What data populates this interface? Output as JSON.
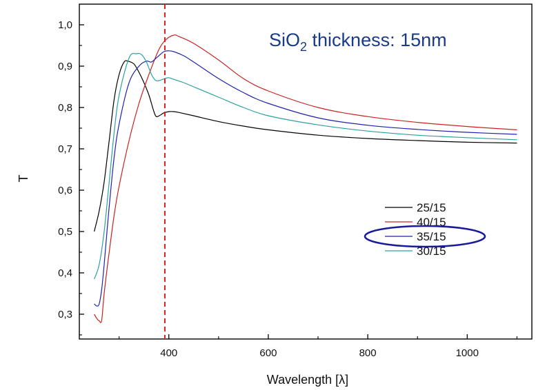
{
  "chart_data": {
    "type": "line",
    "title": "",
    "annotation": {
      "prefix": "SiO",
      "subscript": "2",
      "suffix": " thickness: 15nm",
      "color": "#1a3a8a"
    },
    "xlabel": "Wavelength [λ]",
    "ylabel": "T",
    "xlim": [
      220,
      1130
    ],
    "ylim": [
      0.24,
      1.05
    ],
    "xticks": [
      400,
      600,
      800,
      1000
    ],
    "xtick_labels": [
      "400",
      "600",
      "800",
      "1000"
    ],
    "yticks": [
      0.3,
      0.4,
      0.5,
      0.6,
      0.7,
      0.8,
      0.9,
      1.0
    ],
    "ytick_labels": [
      "0,3",
      "0,4",
      "0,5",
      "0,6",
      "0,7",
      "0,8",
      "0,9",
      "1,0"
    ],
    "grid": false,
    "legend_position": "lower-right",
    "reference_line": {
      "x": 392,
      "color": "#e02020",
      "style": "dashed"
    },
    "highlighted_series": "35/15",
    "highlight_color": "#1a1a9a",
    "series": [
      {
        "name": "25/15",
        "color": "#000000",
        "x": [
          250,
          260,
          270,
          280,
          290,
          300,
          310,
          318,
          330,
          340,
          350,
          360,
          370,
          375,
          382,
          390,
          400,
          410,
          420,
          450,
          500,
          550,
          600,
          700,
          800,
          900,
          1000,
          1100
        ],
        "y": [
          0.5,
          0.55,
          0.62,
          0.72,
          0.82,
          0.88,
          0.91,
          0.912,
          0.905,
          0.885,
          0.86,
          0.83,
          0.79,
          0.778,
          0.781,
          0.787,
          0.79,
          0.79,
          0.788,
          0.78,
          0.766,
          0.755,
          0.746,
          0.733,
          0.725,
          0.72,
          0.716,
          0.714
        ]
      },
      {
        "name": "40/15",
        "color": "#cc2020",
        "x": [
          250,
          255,
          260,
          265,
          270,
          280,
          290,
          300,
          320,
          340,
          360,
          380,
          395,
          410,
          420,
          450,
          500,
          550,
          600,
          700,
          800,
          900,
          1000,
          1100
        ],
        "y": [
          0.3,
          0.29,
          0.284,
          0.285,
          0.35,
          0.45,
          0.54,
          0.61,
          0.72,
          0.81,
          0.88,
          0.94,
          0.965,
          0.975,
          0.972,
          0.955,
          0.915,
          0.87,
          0.84,
          0.8,
          0.778,
          0.764,
          0.754,
          0.746
        ]
      },
      {
        "name": "35/15",
        "color": "#2020b0",
        "x": [
          250,
          255,
          260,
          265,
          270,
          280,
          290,
          300,
          320,
          340,
          355,
          365,
          375,
          390,
          400,
          410,
          430,
          450,
          500,
          550,
          600,
          700,
          800,
          900,
          1000,
          1100
        ],
        "y": [
          0.325,
          0.32,
          0.325,
          0.36,
          0.42,
          0.56,
          0.68,
          0.76,
          0.86,
          0.9,
          0.912,
          0.91,
          0.92,
          0.935,
          0.937,
          0.935,
          0.925,
          0.91,
          0.87,
          0.836,
          0.81,
          0.775,
          0.757,
          0.747,
          0.74,
          0.735
        ]
      },
      {
        "name": "30/15",
        "color": "#2aa0a0",
        "x": [
          250,
          260,
          270,
          280,
          290,
          300,
          320,
          335,
          345,
          355,
          365,
          373,
          380,
          392,
          400,
          410,
          430,
          450,
          500,
          550,
          600,
          700,
          800,
          900,
          1000,
          1100
        ],
        "y": [
          0.385,
          0.42,
          0.5,
          0.62,
          0.74,
          0.83,
          0.92,
          0.93,
          0.928,
          0.91,
          0.88,
          0.866,
          0.865,
          0.87,
          0.872,
          0.868,
          0.86,
          0.85,
          0.825,
          0.8,
          0.78,
          0.758,
          0.743,
          0.733,
          0.727,
          0.722
        ]
      }
    ]
  }
}
